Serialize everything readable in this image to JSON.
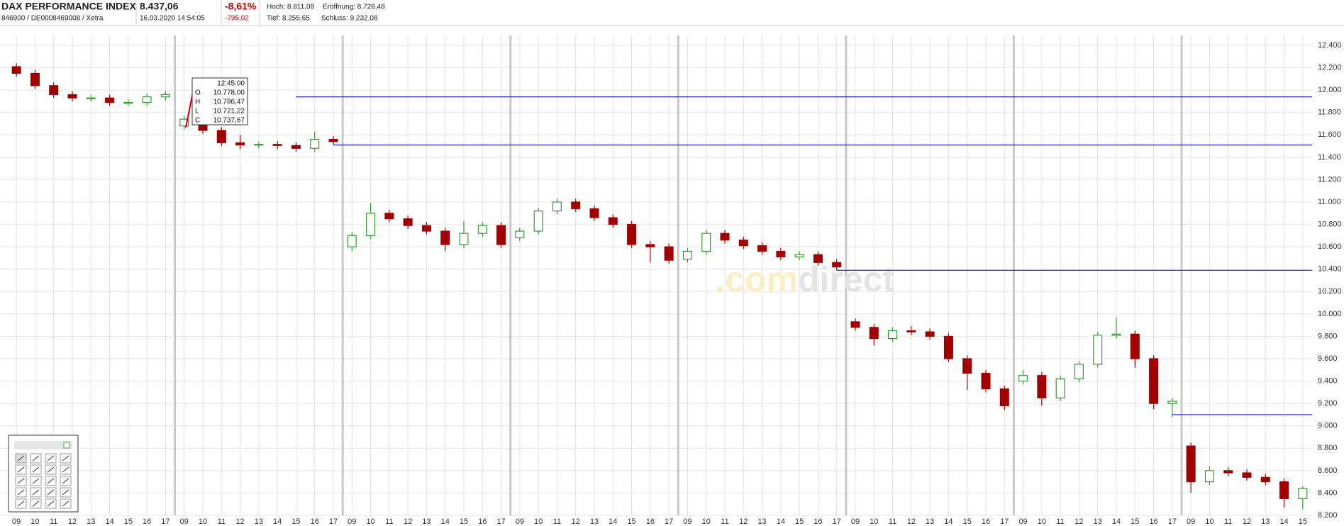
{
  "header": {
    "name": "DAX PERFORMANCE INDEX",
    "price": "8.437,06",
    "change_pct": "-8,61%",
    "ids": "846900 / DE0008469008 / Xetra",
    "timestamp": "16.03.2020 14:54:05",
    "change_abs": "-795,02",
    "high": "Hoch: 8.811,08",
    "open": "Eröffnung: 8.728,48",
    "low": "Tief: 8.255,65",
    "close": "Schluss: 9.232,08"
  },
  "watermark": [
    ".com",
    "direct"
  ],
  "tooltip": {
    "time": "12:45:00",
    "rows": [
      [
        "O",
        "10.778,00"
      ],
      [
        "H",
        "10.786,47"
      ],
      [
        "L",
        "10.721,22"
      ],
      [
        "C",
        "10.737,67"
      ]
    ]
  },
  "chart_data": {
    "type": "candlestick",
    "categories": [
      "09",
      "10",
      "11",
      "12",
      "13",
      "14",
      "15",
      "16",
      "17",
      "09",
      "10",
      "11",
      "12",
      "13",
      "14",
      "15",
      "16",
      "17",
      "09",
      "10",
      "11",
      "12",
      "13",
      "14",
      "15",
      "16",
      "17",
      "09",
      "10",
      "11",
      "12",
      "13",
      "14",
      "15",
      "16",
      "17",
      "09",
      "10",
      "11",
      "12",
      "13",
      "14",
      "15",
      "16",
      "17",
      "09",
      "10",
      "11",
      "12",
      "13",
      "14",
      "15",
      "16",
      "17",
      "09",
      "10",
      "11",
      "12",
      "13",
      "14",
      "15",
      "16",
      "17",
      "09",
      "10",
      "11",
      "12",
      "13",
      "14",
      "15"
    ],
    "open": [
      12210,
      12150,
      12040,
      11960,
      11930,
      11930,
      11890,
      11890,
      11940,
      11680,
      11740,
      11640,
      11530,
      11510,
      11515,
      11505,
      11480,
      11560,
      10600,
      10700,
      10900,
      10850,
      10790,
      10740,
      10620,
      10720,
      10790,
      10680,
      10740,
      10920,
      11000,
      10940,
      10860,
      10800,
      10620,
      10600,
      10490,
      10560,
      10720,
      10660,
      10610,
      10560,
      10510,
      10530,
      10460,
      9930,
      9880,
      9780,
      9850,
      9840,
      9800,
      9600,
      9470,
      9330,
      9400,
      9450,
      9250,
      9420,
      9550,
      9810,
      9820,
      9600,
      9200,
      8820,
      8500,
      8600,
      8580,
      8540,
      8500,
      8350
    ],
    "high": [
      12240,
      12180,
      12070,
      11990,
      11960,
      11960,
      11920,
      11970,
      11990,
      11770,
      11770,
      11670,
      11600,
      11540,
      11545,
      11535,
      11630,
      11590,
      10730,
      10990,
      10930,
      10880,
      10820,
      10770,
      10830,
      10820,
      10820,
      10770,
      10950,
      11030,
      11030,
      10970,
      10890,
      10830,
      10650,
      10630,
      10590,
      10750,
      10750,
      10690,
      10640,
      10590,
      10560,
      10560,
      10490,
      9960,
      9910,
      9880,
      9890,
      9870,
      9830,
      9630,
      9500,
      9360,
      9500,
      9480,
      9450,
      9580,
      9840,
      9970,
      9850,
      9630,
      9250,
      8850,
      8640,
      8630,
      8610,
      8570,
      8530,
      8460
    ],
    "low": [
      12120,
      12010,
      11930,
      11900,
      11900,
      11860,
      11860,
      11860,
      11910,
      11650,
      11610,
      11500,
      11470,
      11480,
      11475,
      11450,
      11450,
      11510,
      10560,
      10670,
      10820,
      10760,
      10710,
      10560,
      10590,
      10690,
      10590,
      10650,
      10710,
      10890,
      10910,
      10830,
      10770,
      10590,
      10460,
      10450,
      10460,
      10530,
      10630,
      10580,
      10530,
      10480,
      10480,
      10430,
      10390,
      9850,
      9720,
      9750,
      9810,
      9770,
      9570,
      9320,
      9300,
      9140,
      9370,
      9180,
      9220,
      9390,
      9520,
      9780,
      9520,
      9150,
      9080,
      8400,
      8470,
      8550,
      8510,
      8470,
      8270,
      8255
    ],
    "close": [
      12150,
      12040,
      11960,
      11930,
      11930,
      11890,
      11890,
      11940,
      11960,
      11740,
      11640,
      11530,
      11510,
      11515,
      11505,
      11480,
      11560,
      11540,
      10700,
      10900,
      10850,
      10790,
      10740,
      10620,
      10720,
      10790,
      10620,
      10740,
      10920,
      11000,
      10940,
      10860,
      10800,
      10620,
      10600,
      10480,
      10560,
      10720,
      10660,
      10610,
      10560,
      10510,
      10530,
      10460,
      10420,
      9880,
      9780,
      9850,
      9840,
      9800,
      9600,
      9470,
      9330,
      9180,
      9450,
      9250,
      9420,
      9550,
      9810,
      9820,
      9600,
      9200,
      9220,
      8500,
      8600,
      8580,
      8540,
      8500,
      8350,
      8440
    ],
    "up_color": "#2e9e2e",
    "down_color": "#a00000",
    "levels": [
      {
        "value": 11940,
        "from": 15
      },
      {
        "value": 11510,
        "from": 17
      },
      {
        "value": 10390,
        "from": 44
      },
      {
        "value": 9100,
        "from": 62
      }
    ],
    "level_color": "#1f1fd6",
    "ylim": [
      8200,
      12400
    ],
    "yticks": [
      {
        "value": 8200,
        "label": "8.200"
      },
      {
        "value": 8400,
        "label": "8.400"
      },
      {
        "value": 8600,
        "label": "8.600"
      },
      {
        "value": 8800,
        "label": "8.800"
      },
      {
        "value": 9000,
        "label": "9.000"
      },
      {
        "value": 9200,
        "label": "9.200"
      },
      {
        "value": 9400,
        "label": "9.400"
      },
      {
        "value": 9600,
        "label": "9.600"
      },
      {
        "value": 9800,
        "label": "9.800"
      },
      {
        "value": 10000,
        "label": "10.000"
      },
      {
        "value": 10200,
        "label": "10.200"
      },
      {
        "value": 10400,
        "label": "10.400"
      },
      {
        "value": 10600,
        "label": "10.600"
      },
      {
        "value": 10800,
        "label": "10.800"
      },
      {
        "value": 11000,
        "label": "11.000"
      },
      {
        "value": 11200,
        "label": "11.200"
      },
      {
        "value": 11400,
        "label": "11.400"
      },
      {
        "value": 11600,
        "label": "11.600"
      },
      {
        "value": 11800,
        "label": "11.800"
      },
      {
        "value": 12000,
        "label": "12.000"
      },
      {
        "value": 12200,
        "label": "12.200"
      },
      {
        "value": 12400,
        "label": "12.400"
      }
    ],
    "grid": true
  }
}
